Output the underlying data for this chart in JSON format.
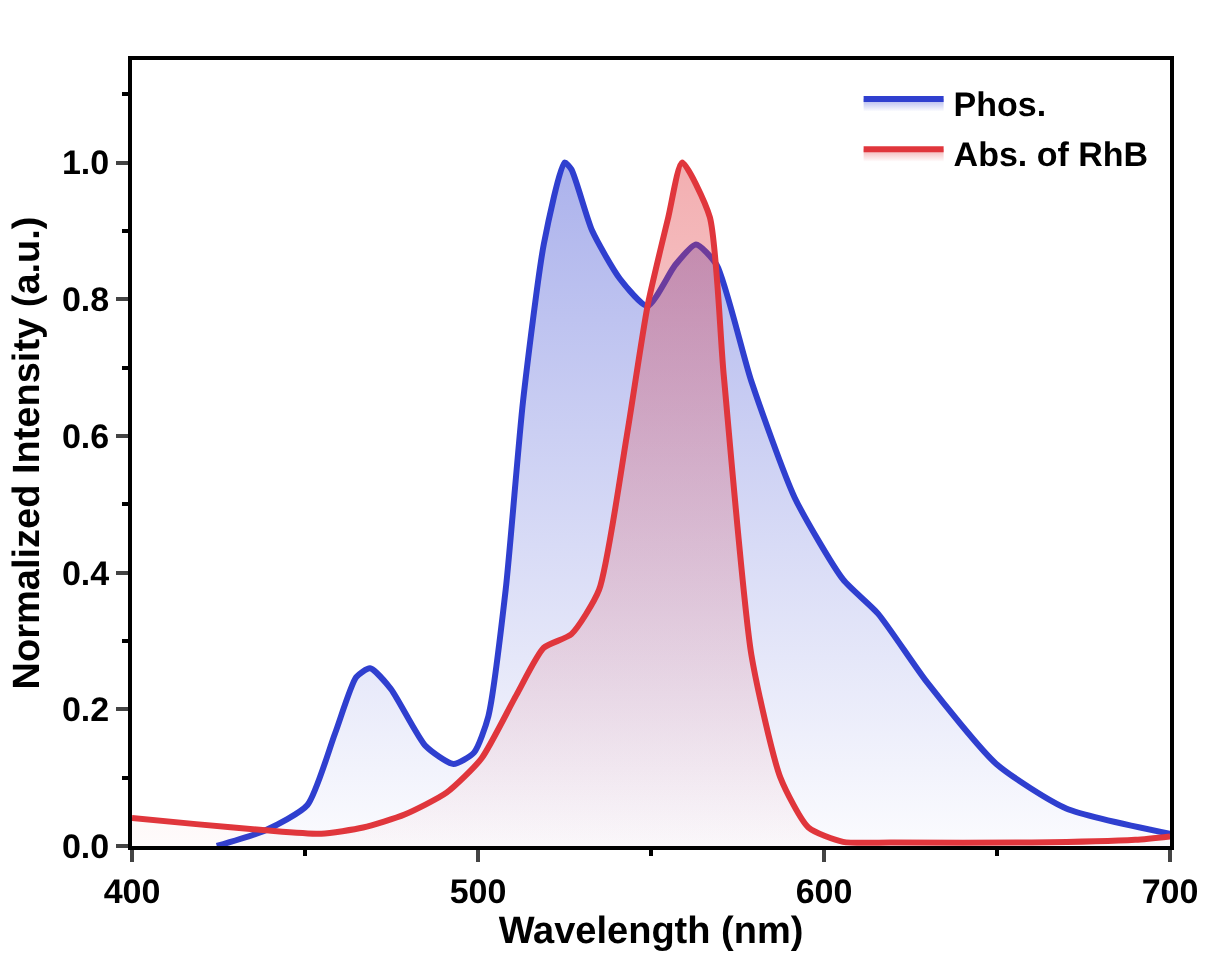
{
  "chart_data": {
    "type": "area",
    "xlabel": "Wavelength (nm)",
    "ylabel": "Normalized Intensity (a.u.)",
    "xlim": [
      400,
      700
    ],
    "xticks": [
      400,
      500,
      600,
      700
    ],
    "ylim": [
      0,
      1.15
    ],
    "yticks": [
      {
        "value": 0.0,
        "label": "0.0"
      },
      {
        "value": 0.2,
        "label": "0.2"
      },
      {
        "value": 0.4,
        "label": "0.4"
      },
      {
        "value": 0.6,
        "label": "0.6"
      },
      {
        "value": 0.8,
        "label": "0.8"
      },
      {
        "value": 1.0,
        "label": "1.0"
      }
    ],
    "legend": "top right",
    "marker": "none",
    "line_style": "solid",
    "series": [
      {
        "name": "Phos.",
        "color": "#2f3fcf",
        "x": [
          424.5,
          438.6,
          450.7,
          458.7,
          464.8,
          468.8,
          474.8,
          484.9,
          492.9,
          498.9,
          503,
          508,
          513,
          519,
          525,
          527,
          533,
          541,
          549,
          557,
          563,
          569,
          579,
          591.5,
          605.5,
          615.6,
          629.7,
          649.8,
          670,
          700
        ],
        "values": [
          0.0,
          0.023,
          0.06,
          0.165,
          0.247,
          0.26,
          0.23,
          0.146,
          0.12,
          0.137,
          0.19,
          0.375,
          0.65,
          0.88,
          1.0,
          0.99,
          0.9,
          0.83,
          0.79,
          0.85,
          0.88,
          0.85,
          0.68,
          0.51,
          0.39,
          0.34,
          0.24,
          0.12,
          0.055,
          0.018
        ]
      },
      {
        "name": "Abs. of RhB",
        "color": "#e0363c",
        "x": [
          400,
          418.5,
          438.6,
          454.7,
          466.8,
          478.8,
          490.9,
          501,
          511,
          519,
          527,
          535,
          543,
          549,
          555,
          559,
          567,
          571,
          579,
          587.4,
          595.5,
          605.5,
          619.6,
          660,
          690,
          700
        ],
        "values": [
          0.041,
          0.032,
          0.023,
          0.018,
          0.027,
          0.046,
          0.078,
          0.128,
          0.22,
          0.29,
          0.31,
          0.375,
          0.6,
          0.79,
          0.92,
          1.0,
          0.92,
          0.69,
          0.28,
          0.1,
          0.027,
          0.006,
          0.005,
          0.005,
          0.009,
          0.014
        ]
      }
    ]
  }
}
